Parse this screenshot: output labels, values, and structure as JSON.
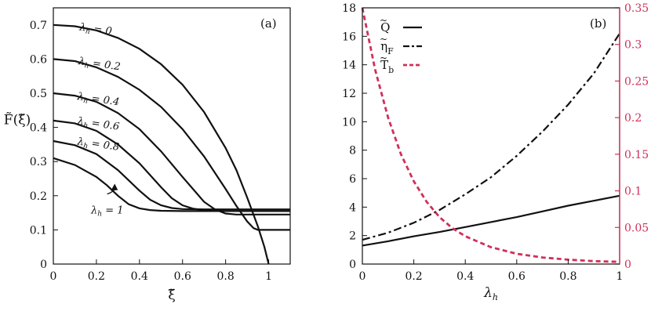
{
  "figure": {
    "background": "#ffffff"
  },
  "chart_data": [
    {
      "id": "a",
      "type": "line",
      "panel_label": "(a)",
      "xlabel": "ξ̃",
      "ylabel": "F̃(ξ̃)",
      "xlim": [
        0,
        1.1
      ],
      "ylim": [
        0,
        0.75
      ],
      "xticks": [
        0,
        0.2,
        0.4,
        0.6,
        0.8,
        1
      ],
      "xtick_labels": [
        "0",
        "0.2",
        "0.4",
        "0.6",
        "0.8",
        "1"
      ],
      "yticks": [
        0,
        0.1,
        0.2,
        0.3,
        0.4,
        0.5,
        0.6,
        0.7
      ],
      "ytick_labels": [
        "0",
        "0.1",
        "0.2",
        "0.3",
        "0.4",
        "0.5",
        "0.6",
        "0.7"
      ],
      "color": "#111111",
      "series": [
        {
          "name": "λh = 0",
          "label_sub": "h",
          "label_text": "= 0",
          "x": [
            0,
            0.1,
            0.2,
            0.3,
            0.4,
            0.5,
            0.6,
            0.7,
            0.8,
            0.85,
            0.9,
            0.95,
            0.98,
            1.0
          ],
          "y": [
            0.7,
            0.696,
            0.684,
            0.662,
            0.63,
            0.585,
            0.525,
            0.445,
            0.34,
            0.275,
            0.195,
            0.11,
            0.05,
            0
          ]
        },
        {
          "name": "λh = 0.2",
          "label_sub": "h",
          "label_text": "= 0.2",
          "x": [
            0,
            0.1,
            0.2,
            0.3,
            0.4,
            0.5,
            0.6,
            0.7,
            0.8,
            0.85,
            0.9,
            0.93,
            0.95,
            0.97,
            1.0,
            1.1
          ],
          "y": [
            0.6,
            0.594,
            0.576,
            0.548,
            0.51,
            0.46,
            0.395,
            0.315,
            0.22,
            0.17,
            0.125,
            0.105,
            0.1,
            0.1,
            0.1,
            0.1
          ]
        },
        {
          "name": "λh = 0.4",
          "label_sub": "h",
          "label_text": "= 0.4",
          "x": [
            0,
            0.1,
            0.2,
            0.3,
            0.4,
            0.5,
            0.6,
            0.7,
            0.75,
            0.8,
            0.85,
            0.9,
            1.0,
            1.1
          ],
          "y": [
            0.5,
            0.493,
            0.475,
            0.442,
            0.395,
            0.33,
            0.255,
            0.182,
            0.16,
            0.148,
            0.145,
            0.145,
            0.145,
            0.145
          ]
        },
        {
          "name": "λh = 0.6",
          "label_sub": "h",
          "label_text": "= 0.6",
          "x": [
            0,
            0.1,
            0.2,
            0.3,
            0.4,
            0.5,
            0.55,
            0.6,
            0.65,
            0.7,
            0.8,
            0.9,
            1.0,
            1.1
          ],
          "y": [
            0.42,
            0.412,
            0.39,
            0.35,
            0.295,
            0.225,
            0.193,
            0.172,
            0.162,
            0.158,
            0.155,
            0.155,
            0.155,
            0.155
          ]
        },
        {
          "name": "λh = 0.8",
          "label_sub": "h",
          "label_text": "= 0.8",
          "x": [
            0,
            0.1,
            0.2,
            0.3,
            0.4,
            0.45,
            0.5,
            0.55,
            0.6,
            0.7,
            0.8,
            0.9,
            1.0,
            1.1
          ],
          "y": [
            0.36,
            0.348,
            0.322,
            0.275,
            0.215,
            0.188,
            0.172,
            0.164,
            0.161,
            0.16,
            0.16,
            0.16,
            0.16,
            0.16
          ]
        },
        {
          "name": "λh = 1",
          "label_sub": "h",
          "label_text": "= 1",
          "x": [
            0,
            0.1,
            0.2,
            0.25,
            0.3,
            0.35,
            0.4,
            0.45,
            0.5,
            0.6,
            0.7,
            0.8,
            0.9,
            1.0,
            1.1
          ],
          "y": [
            0.31,
            0.29,
            0.255,
            0.23,
            0.2,
            0.175,
            0.163,
            0.158,
            0.156,
            0.155,
            0.155,
            0.155,
            0.155,
            0.155,
            0.155
          ]
        }
      ],
      "label_positions": [
        {
          "x": 0.12,
          "y": 0.685
        },
        {
          "x": 0.115,
          "y": 0.585
        },
        {
          "x": 0.11,
          "y": 0.482
        },
        {
          "x": 0.11,
          "y": 0.41
        },
        {
          "x": 0.11,
          "y": 0.35
        },
        {
          "x": 0.175,
          "y": 0.148
        }
      ],
      "annotation_arrow": {
        "from_x": 0.25,
        "from_y": 0.205,
        "to_x": 0.285,
        "to_y": 0.235
      }
    },
    {
      "id": "b",
      "type": "line",
      "panel_label": "(b)",
      "xlabel": "λ",
      "xlabel_sub": "h",
      "xlim": [
        0,
        1
      ],
      "ylim_left": [
        0,
        18
      ],
      "ylim_right": [
        0,
        0.35
      ],
      "xticks": [
        0,
        0.2,
        0.4,
        0.6,
        0.8,
        1
      ],
      "xtick_labels": [
        "0",
        "0.2",
        "0.4",
        "0.6",
        "0.8",
        "1"
      ],
      "yticks_left": [
        0,
        2,
        4,
        6,
        8,
        10,
        12,
        14,
        16,
        18
      ],
      "ytick_labels_left": [
        "0",
        "2",
        "4",
        "6",
        "8",
        "10",
        "12",
        "14",
        "16",
        "18"
      ],
      "yticks_right": [
        0,
        0.05,
        0.1,
        0.15,
        0.2,
        0.25,
        0.3,
        0.35
      ],
      "ytick_labels_right": [
        "0",
        "0.05",
        "0.1",
        "0.15",
        "0.2",
        "0.25",
        "0.3",
        "0.35"
      ],
      "right_axis_color": "#d0305a",
      "series": [
        {
          "name": "Q",
          "legend_text": "Q",
          "legend_sub": "",
          "axis": "left",
          "style": "solid",
          "color": "#111111",
          "x": [
            0,
            0.1,
            0.2,
            0.3,
            0.4,
            0.5,
            0.6,
            0.7,
            0.8,
            0.9,
            1.0
          ],
          "y": [
            1.3,
            1.6,
            1.95,
            2.25,
            2.6,
            2.95,
            3.3,
            3.7,
            4.1,
            4.45,
            4.8
          ]
        },
        {
          "name": "ηF",
          "legend_text": "η",
          "legend_sub": "F",
          "axis": "left",
          "style": "dashdot",
          "color": "#111111",
          "x": [
            0,
            0.1,
            0.2,
            0.3,
            0.4,
            0.5,
            0.6,
            0.7,
            0.8,
            0.9,
            1.0
          ],
          "y": [
            1.7,
            2.2,
            2.9,
            3.8,
            4.9,
            6.1,
            7.6,
            9.3,
            11.2,
            13.4,
            16.2
          ]
        },
        {
          "name": "Tb",
          "legend_text": "T",
          "legend_sub": "b",
          "axis": "right",
          "style": "dashed",
          "color": "#d0305a",
          "x": [
            0,
            0.05,
            0.1,
            0.15,
            0.2,
            0.25,
            0.3,
            0.35,
            0.4,
            0.5,
            0.6,
            0.7,
            0.8,
            0.9,
            1.0
          ],
          "y": [
            0.35,
            0.265,
            0.2,
            0.15,
            0.113,
            0.085,
            0.064,
            0.049,
            0.038,
            0.023,
            0.014,
            0.009,
            0.006,
            0.004,
            0.003
          ]
        }
      ]
    }
  ]
}
